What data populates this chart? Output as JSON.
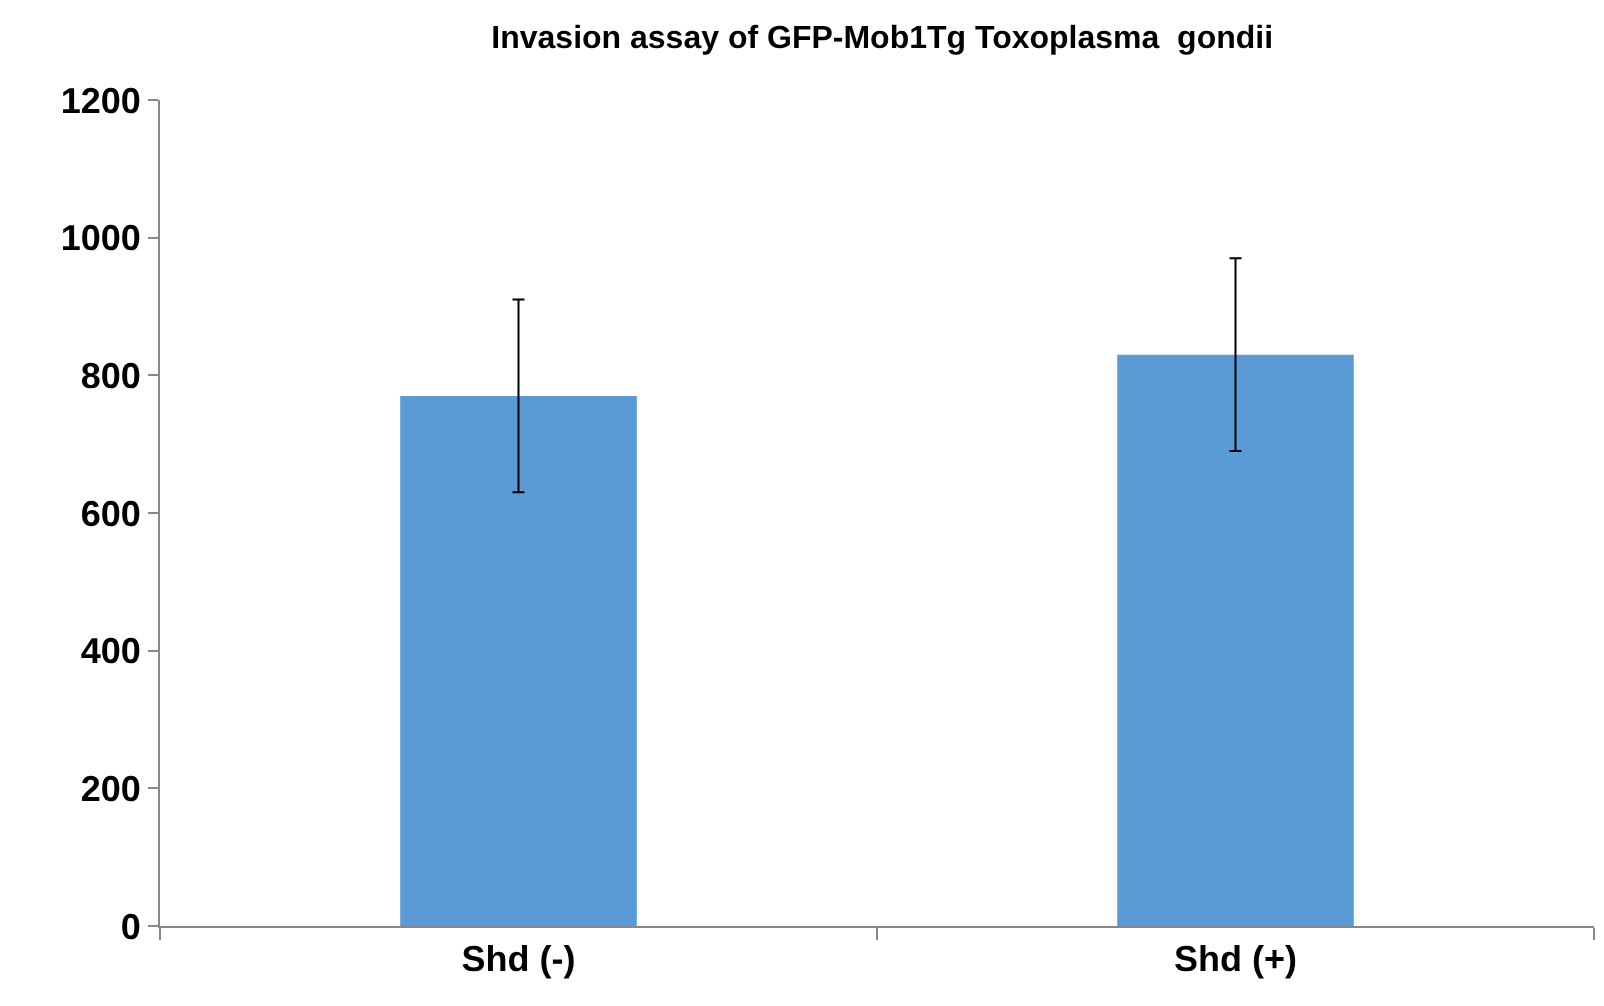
{
  "chart_data": {
    "type": "bar",
    "title": "Invasion assay of GFP-Mob1Tg Toxoplasma  gondii",
    "categories": [
      "Shd (-)",
      "Shd (+)"
    ],
    "values": [
      770,
      830
    ],
    "errors": [
      140,
      140
    ],
    "color": "#5b9bd5",
    "ylim": [
      0,
      1200
    ],
    "yticks": [
      0,
      200,
      400,
      600,
      800,
      1000,
      1200
    ],
    "grid": false
  }
}
